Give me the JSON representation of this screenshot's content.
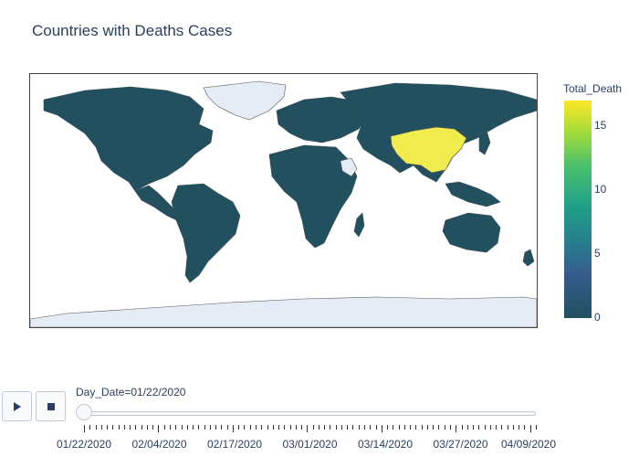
{
  "title": "Countries with Deaths Cases",
  "colorbar": {
    "title": "Total_Death",
    "ticks": [
      "15",
      "10",
      "5",
      "0"
    ],
    "colors": {
      "high": "#fde725",
      "low": "#22505f"
    }
  },
  "map": {
    "base_color": "#22505f",
    "highlight_color": "#f0ec4e",
    "no_data_color": "#e5ecf6",
    "highlighted_country": "China"
  },
  "slider": {
    "label": "Day_Date=01/22/2020",
    "dates": [
      "01/22/2020",
      "02/04/2020",
      "02/17/2020",
      "03/01/2020",
      "03/14/2020",
      "03/27/2020",
      "04/09/2020"
    ]
  },
  "icons": {
    "play": "play-icon",
    "stop": "stop-icon"
  }
}
